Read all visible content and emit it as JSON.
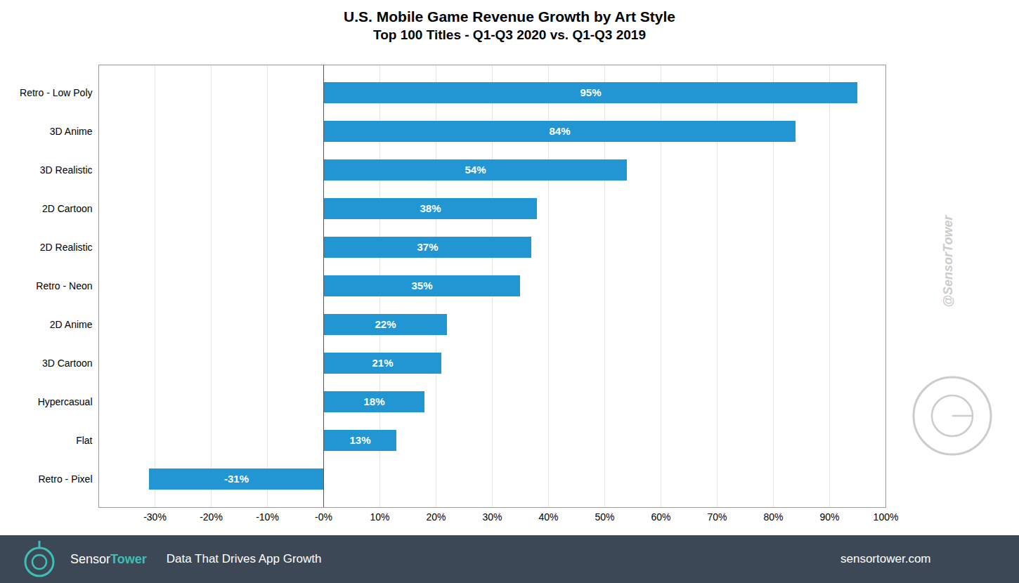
{
  "chart_data": {
    "type": "bar",
    "orientation": "horizontal",
    "title": "U.S. Mobile Game Revenue Growth by Art Style",
    "subtitle": "Top 100 Titles - Q1-Q3 2020 vs. Q1-Q3 2019",
    "categories": [
      "Retro - Low Poly",
      "3D Anime",
      "3D Realistic",
      "2D Cartoon",
      "2D Realistic",
      "Retro - Neon",
      "2D Anime",
      "3D Cartoon",
      "Hypercasual",
      "Flat",
      "Retro - Pixel"
    ],
    "values": [
      95,
      84,
      54,
      38,
      37,
      35,
      22,
      21,
      18,
      13,
      -31
    ],
    "value_labels": [
      "95%",
      "84%",
      "54%",
      "38%",
      "37%",
      "35%",
      "22%",
      "21%",
      "18%",
      "13%",
      "-31%"
    ],
    "data_labels": true,
    "color": "#2196d3",
    "xlim": [
      -40,
      100
    ],
    "xticks": [
      {
        "value": -30,
        "label": "-30%"
      },
      {
        "value": -20,
        "label": "-20%"
      },
      {
        "value": -10,
        "label": "-10%"
      },
      {
        "value": 0,
        "label": "-0%"
      },
      {
        "value": 10,
        "label": "10%"
      },
      {
        "value": 20,
        "label": "20%"
      },
      {
        "value": 30,
        "label": "30%"
      },
      {
        "value": 40,
        "label": "40%"
      },
      {
        "value": 50,
        "label": "50%"
      },
      {
        "value": 60,
        "label": "60%"
      },
      {
        "value": 70,
        "label": "70%"
      },
      {
        "value": 80,
        "label": "80%"
      },
      {
        "value": 90,
        "label": "90%"
      },
      {
        "value": 100,
        "label": "100%"
      }
    ],
    "grid": true,
    "annotations": [
      "@SensorTower",
      "Sensor",
      "Tower",
      "Data That Drives App Growth",
      "sensortower.com"
    ]
  }
}
